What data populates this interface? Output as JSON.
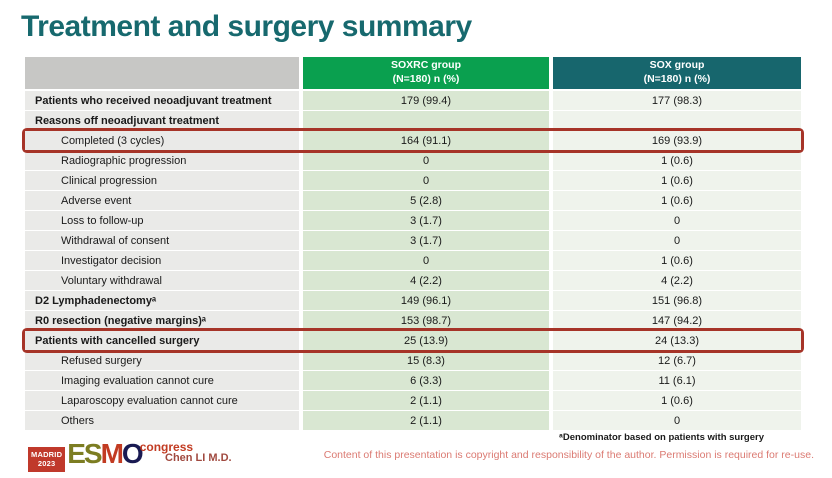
{
  "title": "Treatment and surgery summary",
  "table": {
    "columns": [
      {
        "line1": "SOXRC group",
        "line2": "(N=180)  n (%)"
      },
      {
        "line1": "SOX group",
        "line2": "(N=180)  n (%)"
      }
    ],
    "rows": [
      {
        "label": "Patients who received neoadjuvant treatment",
        "soxrc": "179 (99.4)",
        "sox": "177 (98.3)",
        "style": "group",
        "highlight": false
      },
      {
        "label": "Reasons off neoadjuvant treatment",
        "soxrc": "",
        "sox": "",
        "style": "group",
        "highlight": false
      },
      {
        "label": "Completed (3 cycles)",
        "soxrc": "164 (91.1)",
        "sox": "169 (93.9)",
        "style": "sub",
        "highlight": true
      },
      {
        "label": "Radiographic progression",
        "soxrc": "0",
        "sox": "1 (0.6)",
        "style": "sub",
        "highlight": false
      },
      {
        "label": "Clinical progression",
        "soxrc": "0",
        "sox": "1 (0.6)",
        "style": "sub",
        "highlight": false
      },
      {
        "label": "Adverse event",
        "soxrc": "5 (2.8)",
        "sox": "1 (0.6)",
        "style": "sub",
        "highlight": false
      },
      {
        "label": "Loss to follow-up",
        "soxrc": "3 (1.7)",
        "sox": "0",
        "style": "sub",
        "highlight": false
      },
      {
        "label": "Withdrawal of consent",
        "soxrc": "3 (1.7)",
        "sox": "0",
        "style": "sub",
        "highlight": false
      },
      {
        "label": "Investigator decision",
        "soxrc": "0",
        "sox": "1 (0.6)",
        "style": "sub",
        "highlight": false
      },
      {
        "label": "Voluntary withdrawal",
        "soxrc": "4 (2.2)",
        "sox": "4 (2.2)",
        "style": "sub",
        "highlight": false
      },
      {
        "label": "D2 Lymphadenectomyᵃ",
        "soxrc": "149 (96.1)",
        "sox": "151 (96.8)",
        "style": "group",
        "highlight": false
      },
      {
        "label": "R0 resection (negative margins)ᵃ",
        "soxrc": "153 (98.7)",
        "sox": "147 (94.2)",
        "style": "group",
        "highlight": false
      },
      {
        "label": "Patients with cancelled surgery",
        "soxrc": "25 (13.9)",
        "sox": "24 (13.3)",
        "style": "group",
        "highlight": true
      },
      {
        "label": "Refused surgery",
        "soxrc": "15 (8.3)",
        "sox": "12 (6.7)",
        "style": "sub",
        "highlight": false
      },
      {
        "label": "Imaging evaluation cannot cure",
        "soxrc": "6 (3.3)",
        "sox": "11 (6.1)",
        "style": "sub",
        "highlight": false
      },
      {
        "label": "Laparoscopy evaluation cannot cure",
        "soxrc": "2 (1.1)",
        "sox": "1 (0.6)",
        "style": "sub",
        "highlight": false
      },
      {
        "label": "Others",
        "soxrc": "2 (1.1)",
        "sox": "0",
        "style": "sub",
        "highlight": false
      }
    ]
  },
  "footer": {
    "logo": {
      "badge_line1": "MADRID",
      "badge_line2": "2023",
      "letters": [
        "E",
        "S",
        "M",
        "O"
      ],
      "congress": "congress"
    },
    "author": "Chen LI M.D.",
    "footnote": "ᵃDenominator based on patients with surgery",
    "copyright": "Content of this presentation is copyright and responsibility of the author. Permission is required for re-use."
  },
  "colors": {
    "title": "#17696E",
    "soxrc_header_bg": "#0AA04F",
    "sox_header_bg": "#17666D",
    "empty_header_bg": "#C7C7C5",
    "label_cell_bg": "#EAEAE8",
    "soxrc_cell_bg": "#D9E7D2",
    "sox_cell_bg": "#EFF3EC",
    "highlight_box": "#A63428",
    "copyright_text": "#DB7A72",
    "author_text": "#A0493F"
  }
}
